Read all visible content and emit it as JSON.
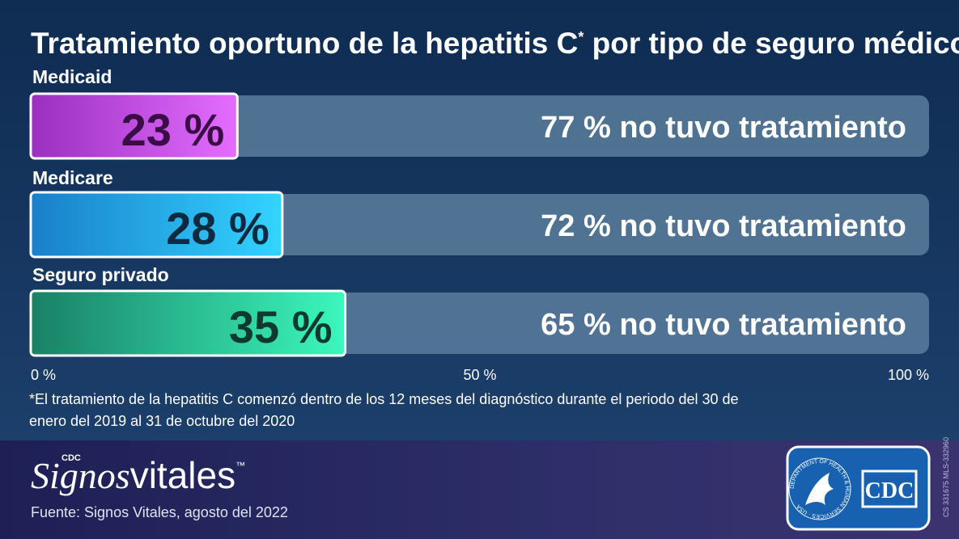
{
  "chart_data": {
    "type": "stacked-bar-h",
    "title": "Tratamiento oportuno de la hepatitis C",
    "title_mark": "*",
    "title_end": "por tipo de seguro médico",
    "categories": [
      "Medicaid",
      "Medicare",
      "Seguro privado"
    ],
    "series": [
      {
        "values": [
          23,
          28,
          35
        ],
        "value_labels": [
          "23 %",
          "28 %",
          "35 %"
        ],
        "colors": [
          [
            "#9a2fc0",
            "#e46dff"
          ],
          [
            "#1a7fc9",
            "#33d3ff"
          ],
          [
            "#1a8066",
            "#3cf7bd"
          ]
        ],
        "label_colors": [
          "#3a0d47",
          "#0c2b40",
          "#0d3a2e"
        ]
      },
      {
        "values": [
          77,
          72,
          65
        ],
        "value_labels": [
          "77 % no tuvo tratamiento",
          "72 % no tuvo tratamiento",
          "65 % no tuvo tratamiento"
        ],
        "color": "#5b7e9e"
      }
    ],
    "xlim": [
      0,
      100
    ],
    "xticks": [
      {
        "value": 0,
        "label": "0 %"
      },
      {
        "value": 50,
        "label": "50 %"
      },
      {
        "value": 100,
        "label": "100 %"
      }
    ],
    "footnote": [
      "*El tratamiento de la hepatitis C comenzó dentro de los 12 meses del diagnóstico durante el periodo del 30 de",
      "enero del 2019 al 31 de octubre del 2020"
    ]
  },
  "footer": {
    "brand_small": "CDC",
    "brand_a": "Signos",
    "brand_b": "vitales",
    "brand_tm": "™",
    "source": "Fuente: Signos Vitales, agosto del 2022",
    "code": "CS 331675   MLS-332960",
    "seal_text": "DEPARTMENT OF HEALTH & HUMAN SERVICES · USA",
    "logo": "CDC"
  }
}
